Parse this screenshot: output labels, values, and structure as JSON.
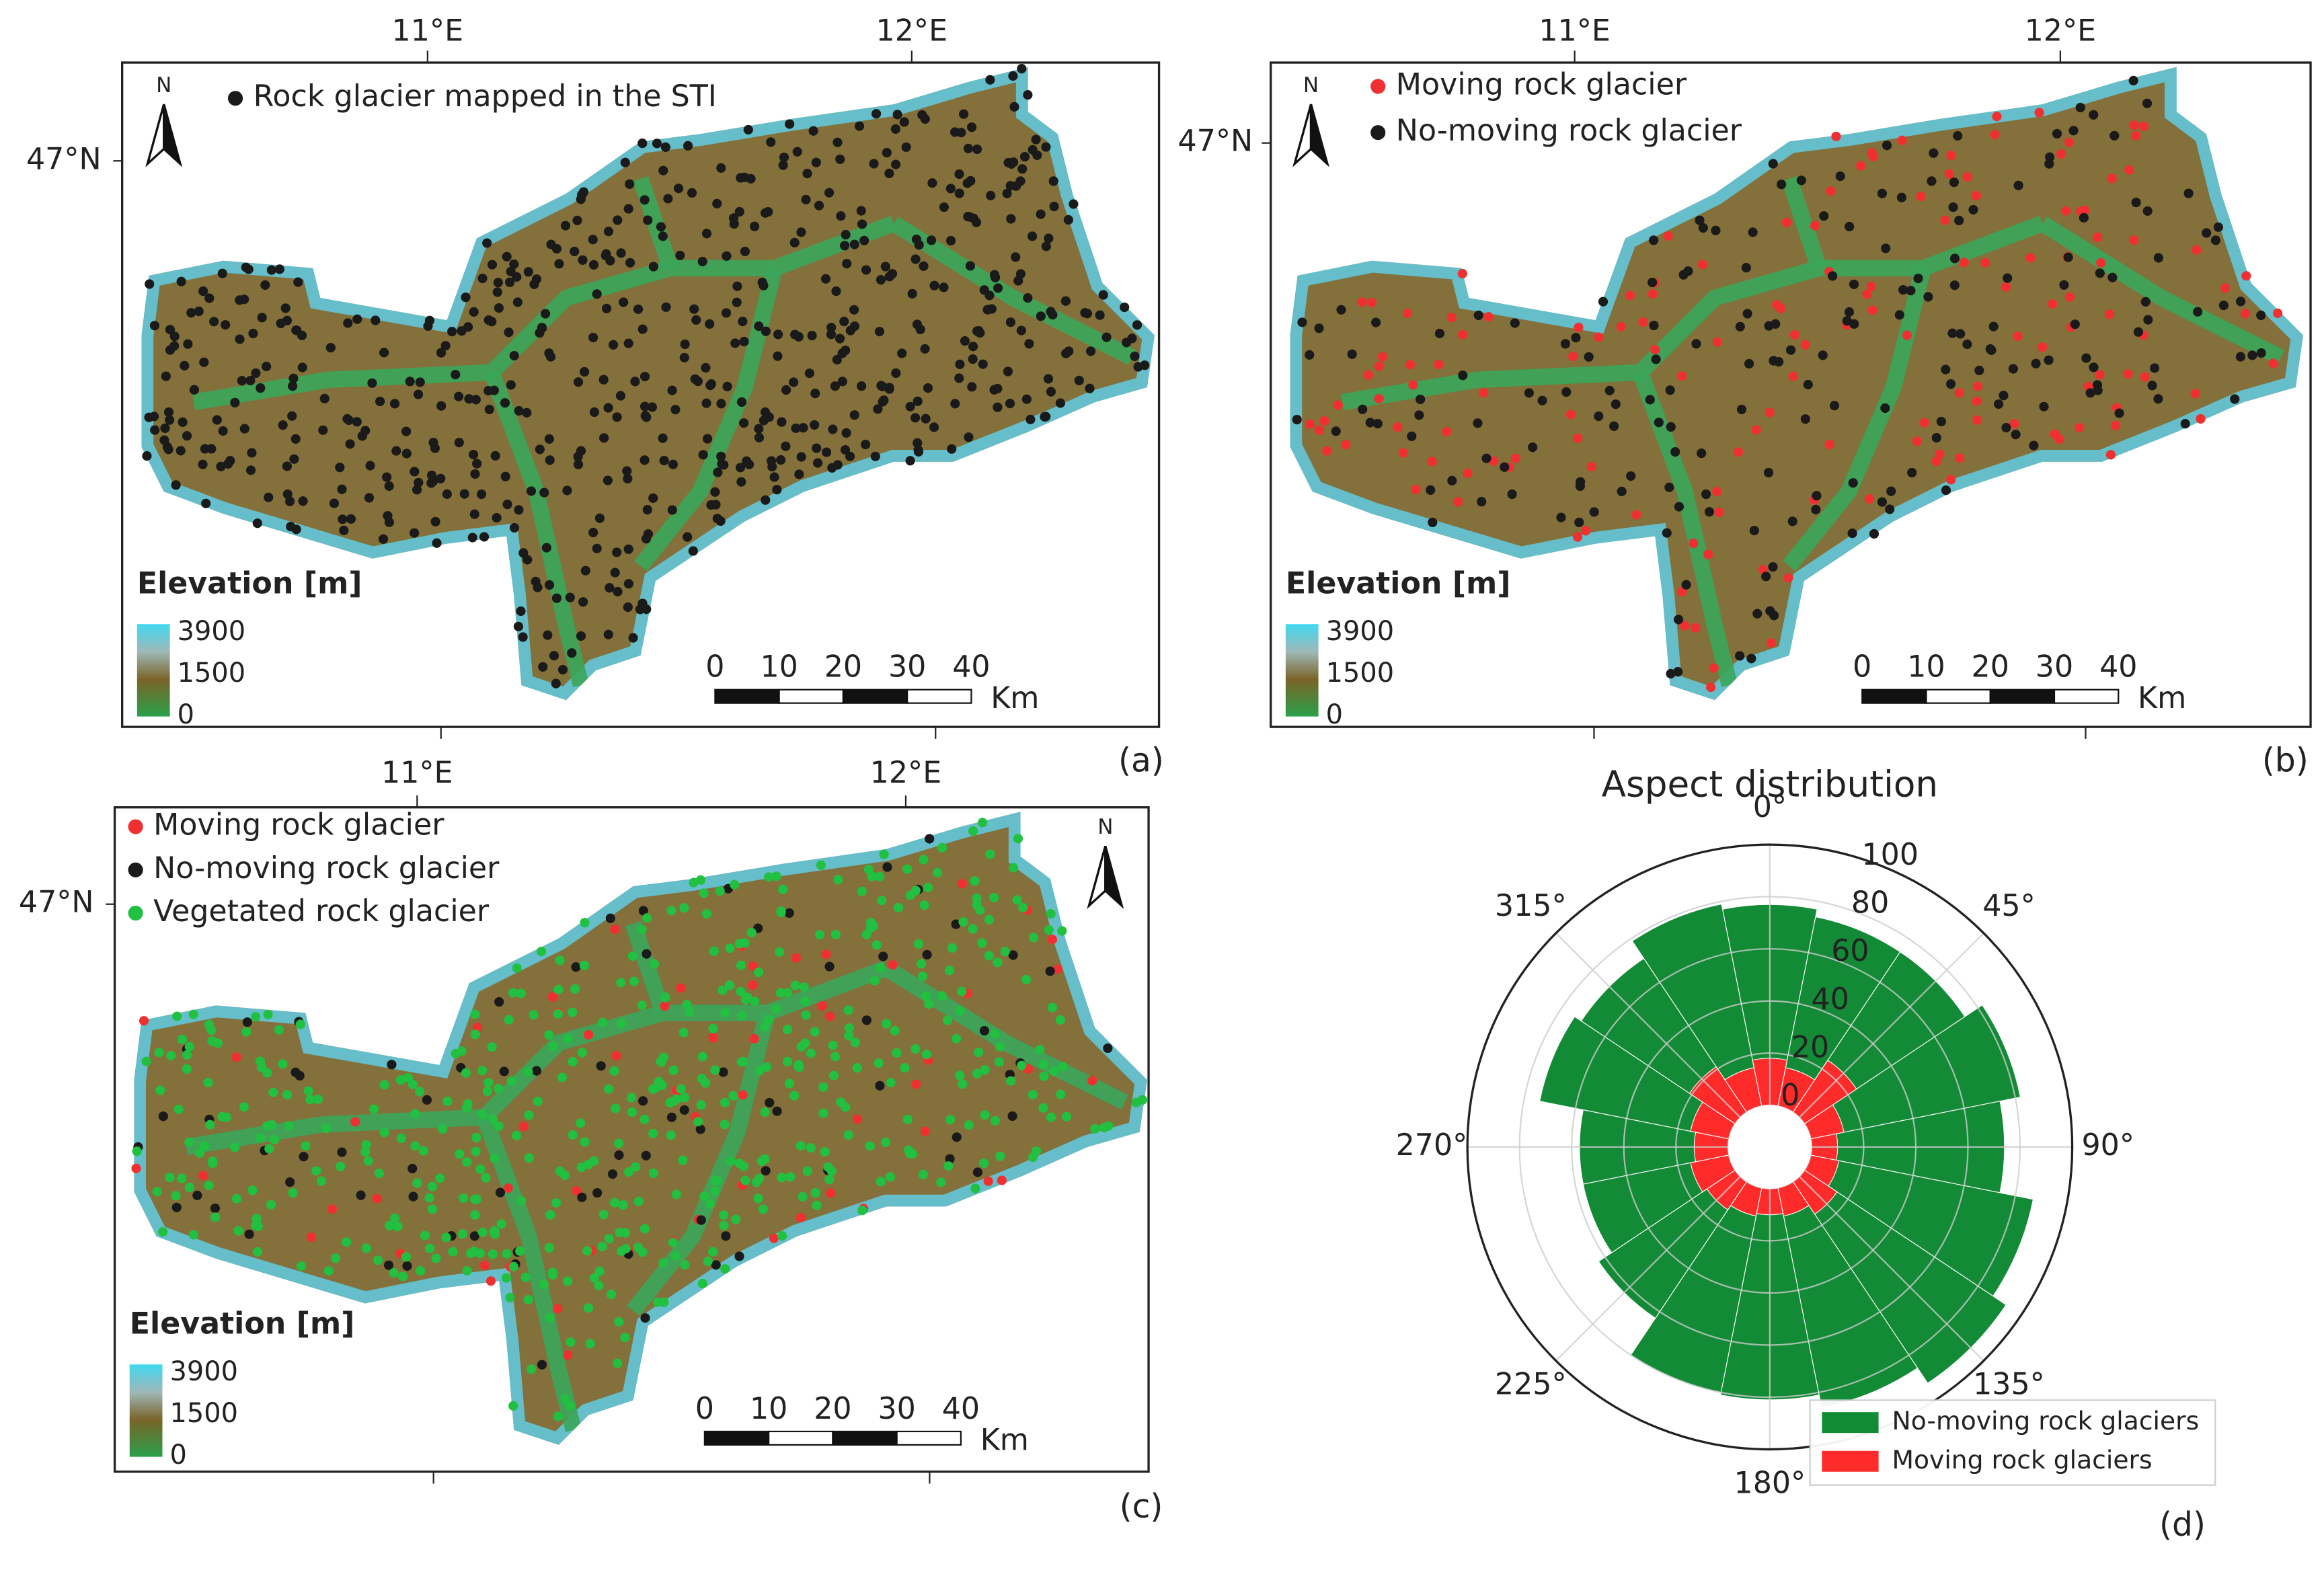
{
  "panels": [
    {
      "label": "(a)",
      "lon_ticks": [
        "11°E",
        "12°E"
      ],
      "lat_tick": "47°N",
      "north": "N",
      "legend": [
        {
          "name": "Rock glacier mapped in the STI",
          "color": "#1a1a1a"
        }
      ],
      "elevation": {
        "title": "Elevation [m]",
        "ticks": [
          3900,
          1500,
          0
        ]
      },
      "scale_bar": {
        "ticks": [
          0,
          10,
          20,
          30,
          40
        ],
        "unit": "Km"
      }
    },
    {
      "label": "(b)",
      "lon_ticks": [
        "11°E",
        "12°E"
      ],
      "lat_tick": "47°N",
      "north": "N",
      "legend": [
        {
          "name": "Moving rock glacier",
          "color": "#f03030"
        },
        {
          "name": "No-moving rock glacier",
          "color": "#1a1a1a"
        }
      ],
      "elevation": {
        "title": "Elevation [m]",
        "ticks": [
          3900,
          1500,
          0
        ]
      },
      "scale_bar": {
        "ticks": [
          0,
          10,
          20,
          30,
          40
        ],
        "unit": "Km"
      }
    },
    {
      "label": "(c)",
      "lon_ticks": [
        "11°E",
        "12°E"
      ],
      "lat_tick": "47°N",
      "north": "N",
      "legend": [
        {
          "name": "Moving rock glacier",
          "color": "#f03030"
        },
        {
          "name": "No-moving rock glacier",
          "color": "#1a1a1a"
        },
        {
          "name": "Vegetated rock glacier",
          "color": "#22c040"
        }
      ],
      "elevation": {
        "title": "Elevation [m]",
        "ticks": [
          3900,
          1500,
          0
        ]
      },
      "scale_bar": {
        "ticks": [
          0,
          10,
          20,
          30,
          40
        ],
        "unit": "Km"
      }
    }
  ],
  "chart_data": {
    "type": "polar_bar",
    "title": "Aspect distribution",
    "panel_label": "(d)",
    "x": [
      0,
      22.5,
      45,
      67.5,
      90,
      112.5,
      135,
      157.5,
      180,
      202.5,
      225,
      247.5,
      270,
      292.5,
      315,
      337.5
    ],
    "series": [
      {
        "name": "No-moving rock glaciers",
        "color": "#138a36",
        "values": [
          77,
          74,
          74,
          82,
          74,
          87,
          93,
          86,
          81,
          80,
          63,
          57,
          57,
          74,
          71,
          79
        ]
      },
      {
        "name": "Moving rock glaciers",
        "color": "#ff2a2a",
        "values": [
          18,
          15,
          24,
          13,
          10,
          11,
          15,
          11,
          10,
          11,
          13,
          15,
          13,
          15,
          21,
          15
        ]
      }
    ],
    "ylim": [
      0,
      100
    ],
    "yticks": [
      0,
      20,
      40,
      60,
      80,
      100
    ],
    "theta_ticks": [
      {
        "value": 0,
        "label": "0°"
      },
      {
        "value": 45,
        "label": "45°"
      },
      {
        "value": 90,
        "label": "90°"
      },
      {
        "value": 135,
        "label": "135°"
      },
      {
        "value": 180,
        "label": "180°"
      },
      {
        "value": 225,
        "label": "225°"
      },
      {
        "value": 270,
        "label": "270°"
      },
      {
        "value": 315,
        "label": "315°"
      }
    ],
    "grid": true,
    "legend": "lower right"
  }
}
